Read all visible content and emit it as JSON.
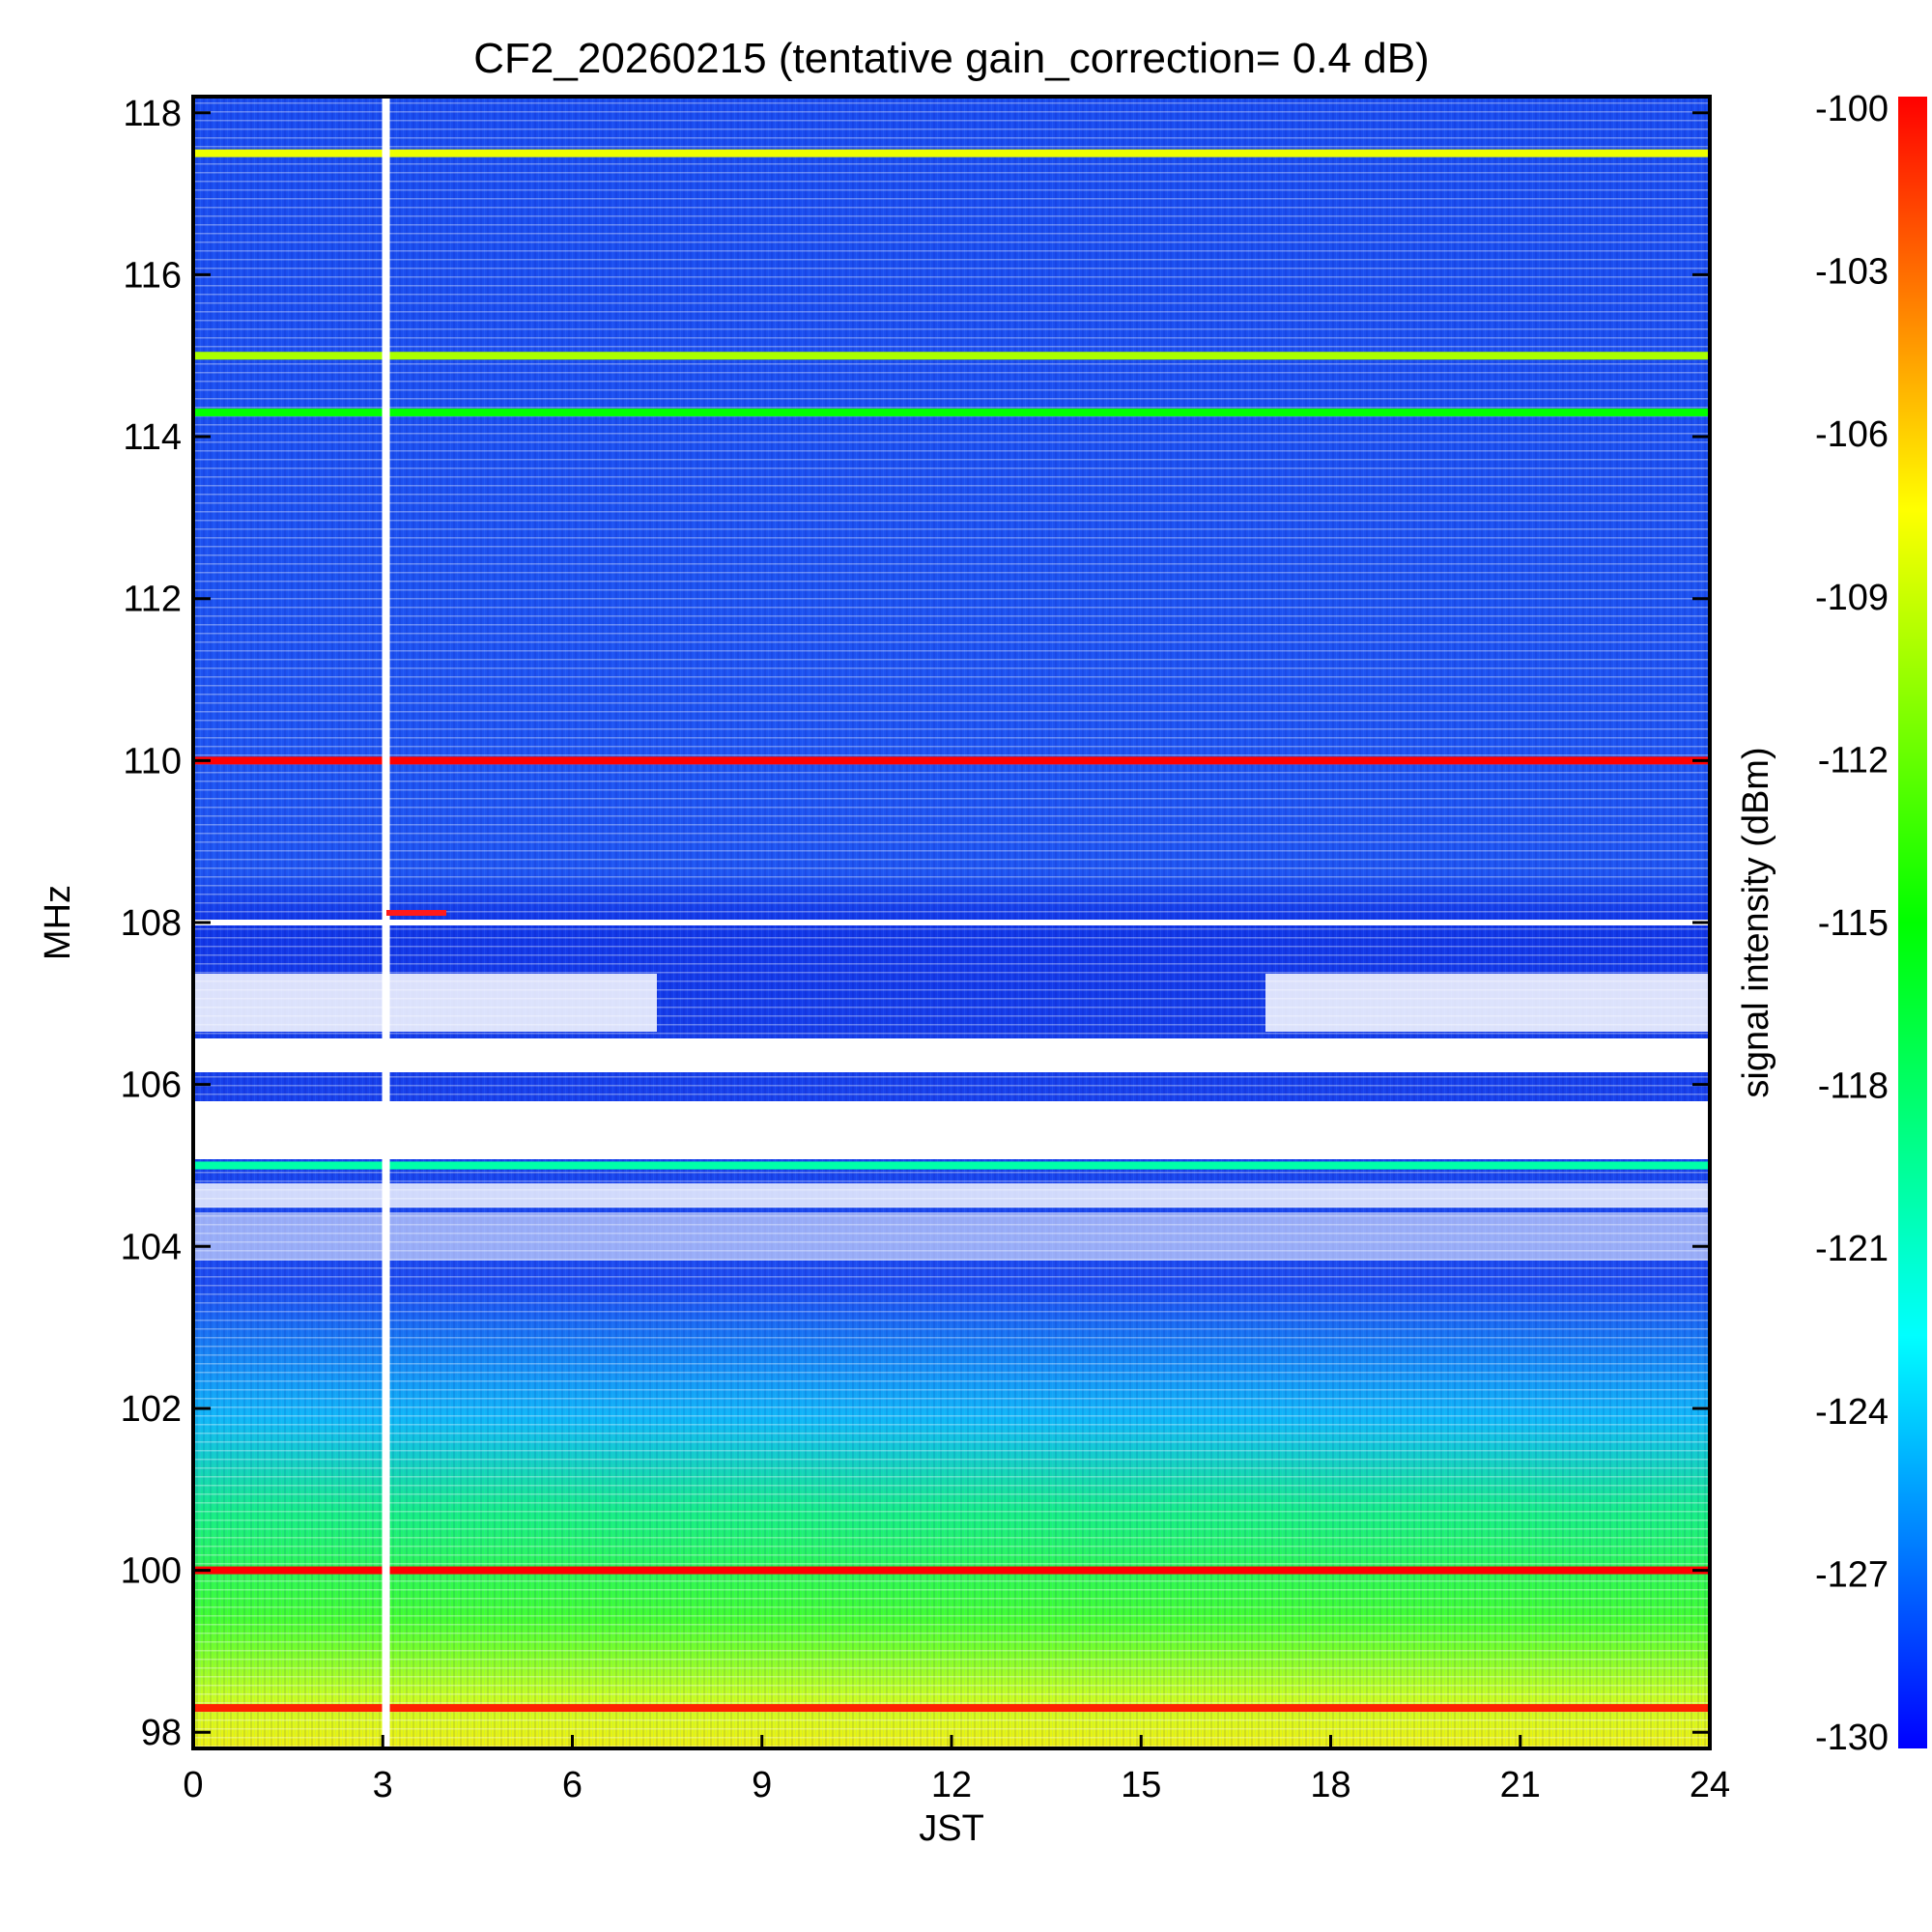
{
  "chart_data": {
    "type": "heatmap",
    "title": "CF2_20260215 (tentative gain_correction=  0.4 dB)",
    "xlabel": "JST",
    "ylabel": "MHz",
    "xlim": [
      0,
      24
    ],
    "ylim": [
      97.8,
      118.2
    ],
    "x_ticks": [
      "0",
      "3",
      "6",
      "9",
      "12",
      "15",
      "18",
      "21",
      "24"
    ],
    "y_ticks": [
      "98",
      "100",
      "102",
      "104",
      "106",
      "108",
      "110",
      "112",
      "114",
      "116",
      "118"
    ],
    "colorbar": {
      "label": "signal intensity (dBm)",
      "range": [
        -130,
        -100
      ],
      "ticks": [
        "-100",
        "-103",
        "-106",
        "-109",
        "-112",
        "-115",
        "-118",
        "-121",
        "-124",
        "-127",
        "-130"
      ]
    },
    "data_gap": {
      "x": 3.05,
      "label": ""
    },
    "strong_lines_mhz": [
      {
        "freq": 117.5,
        "level": -108
      },
      {
        "freq": 115.0,
        "level": -110
      },
      {
        "freq": 114.3,
        "level": -115
      },
      {
        "freq": 110.0,
        "level": -100
      },
      {
        "freq": 105.0,
        "level": -120
      },
      {
        "freq": 100.0,
        "level": -100
      },
      {
        "freq": 98.3,
        "level": -101
      }
    ],
    "colors": {
      "low": "#0022ff",
      "mid_low": "#00d8ff",
      "mid": "#00ff40",
      "mid_high": "#ffff00",
      "high": "#ff0000"
    }
  }
}
